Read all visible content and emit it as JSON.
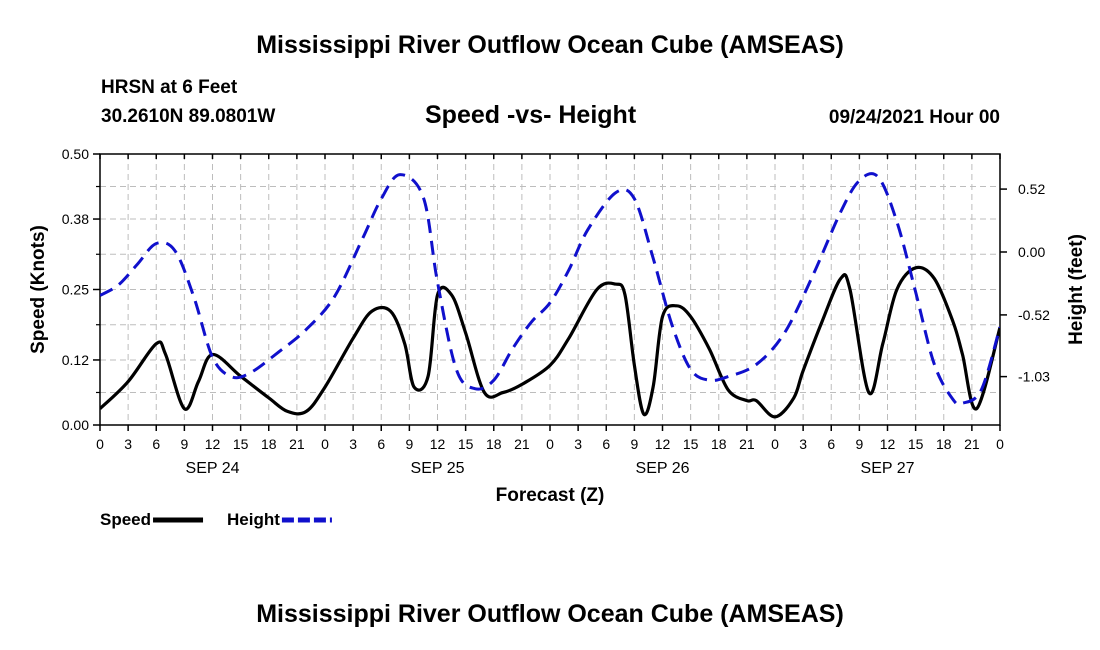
{
  "page": {
    "title_top": "Mississippi River Outflow Ocean Cube (AMSEAS)",
    "title_bottom": "Mississippi River Outflow Ocean Cube (AMSEAS)",
    "station": "HRSN at 6 Feet",
    "location": "30.2610N  89.0801W",
    "subtitle": "Speed -vs- Height",
    "run_time": "09/24/2021 Hour 00"
  },
  "chart_data": {
    "type": "line",
    "title": "Speed -vs- Height",
    "xlabel": "Forecast (Z)",
    "ylabel_left": "Speed (Knots)",
    "ylabel_right": "Height (feet)",
    "x_range_hours": [
      0,
      96
    ],
    "x_tick_step_hours": 3,
    "x_tick_labels": [
      "0",
      "3",
      "6",
      "9",
      "12",
      "15",
      "18",
      "21",
      "0",
      "3",
      "6",
      "9",
      "12",
      "15",
      "18",
      "21",
      "0",
      "3",
      "6",
      "9",
      "12",
      "15",
      "18",
      "21",
      "0",
      "3",
      "6",
      "9",
      "12",
      "15",
      "18",
      "21",
      "0"
    ],
    "day_labels": [
      {
        "label": "SEP 24",
        "hour": 12
      },
      {
        "label": "SEP 25",
        "hour": 36
      },
      {
        "label": "SEP 26",
        "hour": 60
      },
      {
        "label": "SEP 27",
        "hour": 84
      }
    ],
    "ylim_left": [
      0,
      0.5
    ],
    "y_ticks_left": [
      0.0,
      0.12,
      0.25,
      0.38,
      0.5
    ],
    "y_tick_labels_left": [
      "0.00",
      "0.12",
      "0.25",
      "0.38",
      "0.50"
    ],
    "ylim_right": [
      -1.43,
      0.81
    ],
    "y_ticks_right": [
      -1.03,
      -0.52,
      0.0,
      0.52
    ],
    "y_tick_labels_right": [
      "-1.03",
      "-0.52",
      "0.00",
      "0.52"
    ],
    "grid": true,
    "legend_position": "bottom-left",
    "series": [
      {
        "name": "Speed",
        "axis": "left",
        "color": "#000000",
        "style": "solid",
        "x": [
          0,
          3,
          6,
          7,
          9,
          10.5,
          12,
          15,
          18,
          20,
          22,
          24,
          27,
          29,
          31,
          32.5,
          33.5,
          35,
          36,
          37.5,
          39,
          41,
          43,
          45,
          48,
          50,
          53,
          55,
          56,
          57,
          58,
          59,
          60,
          61.5,
          63,
          65,
          67,
          69,
          70,
          72,
          74,
          75,
          77,
          79,
          80,
          82,
          83.5,
          85,
          87,
          89,
          91,
          92,
          93.5,
          96
        ],
        "values": [
          0.03,
          0.08,
          0.15,
          0.13,
          0.03,
          0.08,
          0.13,
          0.09,
          0.05,
          0.025,
          0.025,
          0.07,
          0.16,
          0.21,
          0.21,
          0.15,
          0.07,
          0.09,
          0.24,
          0.24,
          0.17,
          0.06,
          0.06,
          0.075,
          0.11,
          0.16,
          0.25,
          0.26,
          0.24,
          0.11,
          0.02,
          0.07,
          0.2,
          0.22,
          0.2,
          0.14,
          0.065,
          0.045,
          0.045,
          0.015,
          0.05,
          0.1,
          0.19,
          0.27,
          0.25,
          0.06,
          0.15,
          0.25,
          0.29,
          0.27,
          0.19,
          0.13,
          0.03,
          0.18
        ]
      },
      {
        "name": "Height",
        "axis": "right",
        "color": "#1010cc",
        "style": "dashed",
        "x": [
          0,
          2,
          4,
          6,
          8,
          10,
          12,
          14,
          16,
          19,
          22,
          25,
          28,
          30,
          32,
          34.5,
          36,
          38,
          40,
          42,
          44,
          46,
          48,
          50,
          52,
          55,
          57,
          59,
          61,
          63,
          65,
          67,
          70,
          73,
          76,
          79,
          81,
          83,
          85,
          87,
          89,
          91,
          92,
          94,
          96
        ],
        "values": [
          -0.36,
          -0.27,
          -0.1,
          0.07,
          0.01,
          -0.37,
          -0.87,
          -1.03,
          -1.0,
          -0.83,
          -0.64,
          -0.37,
          0.11,
          0.44,
          0.64,
          0.45,
          -0.25,
          -0.97,
          -1.13,
          -1.06,
          -0.8,
          -0.58,
          -0.42,
          -0.15,
          0.18,
          0.49,
          0.44,
          -0.05,
          -0.6,
          -0.97,
          -1.06,
          -1.03,
          -0.93,
          -0.67,
          -0.2,
          0.33,
          0.59,
          0.62,
          0.25,
          -0.33,
          -0.93,
          -1.22,
          -1.25,
          -1.14,
          -0.62
        ]
      }
    ]
  }
}
